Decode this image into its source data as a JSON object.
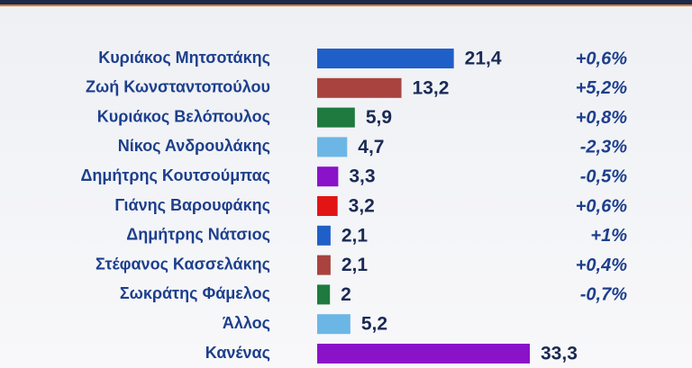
{
  "chart_data": {
    "type": "bar",
    "orientation": "horizontal",
    "categories": [
      "Κυριάκος Μητσοτάκης",
      "Ζωή Κωνσταντοπούλου",
      "Κυριάκος Βελόπουλος",
      "Νίκος Ανδρουλάκης",
      "Δημήτρης Κουτσούμπας",
      "Γιάνης Βαρουφάκης",
      "Δημήτρης Νάτσιος",
      "Στέφανος Κασσελάκης",
      "Σωκράτης Φάμελος",
      "Άλλος",
      "Κανένας"
    ],
    "values": [
      21.4,
      13.2,
      5.9,
      4.7,
      3.3,
      3.2,
      2.1,
      2.1,
      2,
      5.2,
      33.3
    ],
    "value_labels": [
      "21,4",
      "13,2",
      "5,9",
      "4,7",
      "3,3",
      "3,2",
      "2,1",
      "2,1",
      "2",
      "5,2",
      "33,3"
    ],
    "changes": [
      "+0,6%",
      "+5,2%",
      "+0,8%",
      "-2,3%",
      "-0,5%",
      "+0,6%",
      "+1%",
      "+0,4%",
      "-0,7%",
      null,
      null
    ],
    "colors": [
      "#1f5fc8",
      "#a8433f",
      "#1e7a3e",
      "#6cb6e6",
      "#8a12c9",
      "#e21414",
      "#1f5fc8",
      "#a8433f",
      "#1e7a3e",
      "#6cb6e6",
      "#8a12c9"
    ]
  }
}
